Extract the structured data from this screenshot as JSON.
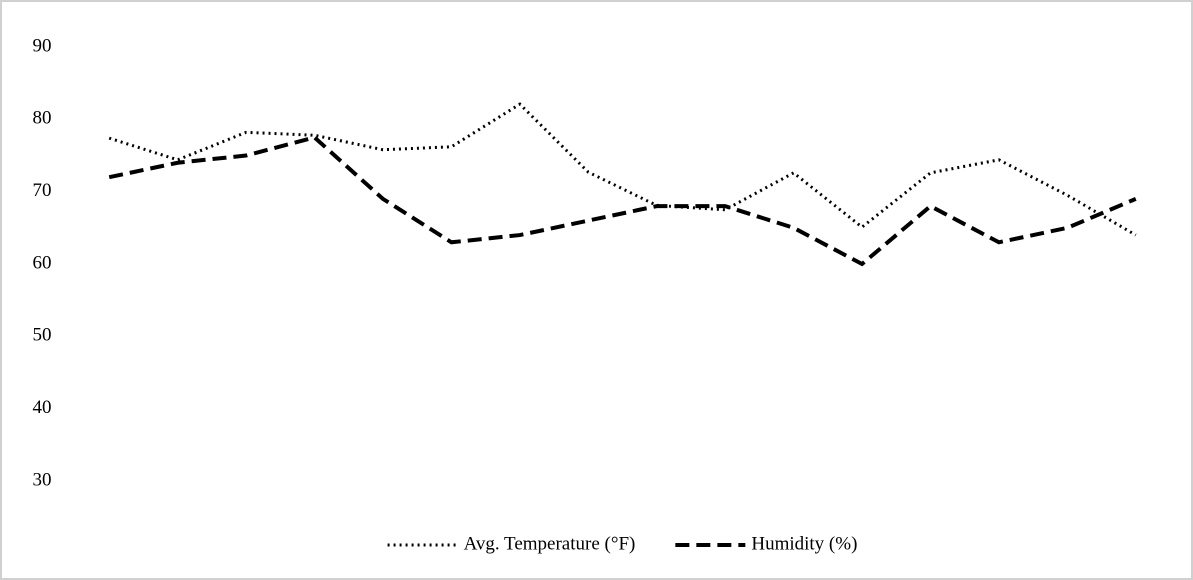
{
  "chart_data": {
    "type": "line",
    "categories": [
      null,
      null,
      null,
      null,
      null,
      null,
      null,
      null,
      null,
      null,
      null,
      null,
      null,
      null,
      null,
      null
    ],
    "series": [
      {
        "name": "Avg. Temperature (°F)",
        "color": "#000000",
        "line_style": "dotted",
        "values": [
          77.4,
          74.4,
          78.2,
          77.8,
          75.8,
          76.2,
          82.1,
          72.7,
          68.1,
          67.5,
          72.6,
          65.1,
          72.6,
          74.4,
          69.5,
          64
        ]
      },
      {
        "name": "Humidity (%)",
        "color": "#000000",
        "line_style": "dashed",
        "values": [
          72,
          74,
          75,
          77.5,
          69,
          63,
          64,
          66,
          68,
          68,
          65,
          60,
          68,
          63,
          65,
          69
        ]
      }
    ],
    "ylim": [
      30,
      90
    ],
    "yticks": [
      30,
      40,
      50,
      60,
      70,
      80,
      90
    ],
    "grid": false,
    "legend": "bottom"
  }
}
